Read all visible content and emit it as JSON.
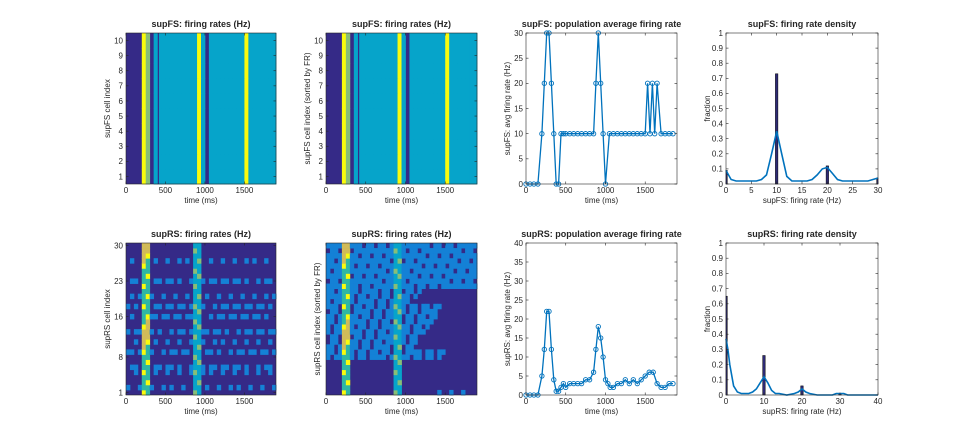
{
  "figure": {
    "background": "#ffffff"
  },
  "colors": {
    "line": "#0072bd",
    "bar_fill": "#2e2a77",
    "axis": "#262626",
    "parula": [
      "#352a87",
      "#0f5cdd",
      "#1481d6",
      "#06a4ca",
      "#2eb7a4",
      "#87bf77",
      "#d1bb59",
      "#fec832",
      "#f9fb0e"
    ]
  },
  "chart_data": [
    {
      "type": "heatmap",
      "title": "supFS: firing rates (Hz)",
      "xlabel": "time (ms)",
      "ylabel": "supFS cell index",
      "xlim": [
        0,
        1900
      ],
      "ylim": [
        0.5,
        10.5
      ],
      "xticks": [
        0,
        500,
        1000,
        1500
      ],
      "yticks": [
        1,
        2,
        3,
        4,
        5,
        6,
        7,
        8,
        9,
        10
      ],
      "bins_ms": 50,
      "rows": 10,
      "profile": [
        0,
        0,
        0,
        0,
        9,
        5,
        0,
        3,
        3,
        3,
        3,
        3,
        3,
        3,
        3,
        3,
        3,
        3,
        8,
        3,
        0,
        3,
        3,
        3,
        3,
        3,
        3,
        3,
        3,
        3,
        8,
        3,
        3,
        3,
        3,
        3,
        3,
        3
      ],
      "dark_lines_ms": [
        410,
        1030
      ]
    },
    {
      "type": "heatmap",
      "title": "supFS: firing rates (Hz)",
      "xlabel": "time (ms)",
      "ylabel": "supFS cell index (sorted by FR)",
      "xlim": [
        0,
        1900
      ],
      "ylim": [
        0.5,
        10.5
      ],
      "xticks": [
        0,
        500,
        1000,
        1500
      ],
      "yticks": [
        1,
        2,
        3,
        4,
        5,
        6,
        7,
        8,
        9,
        10
      ],
      "bins_ms": 50,
      "rows": 10,
      "profile": [
        0,
        0,
        0,
        0,
        9,
        5,
        0,
        3,
        3,
        3,
        3,
        3,
        3,
        3,
        3,
        3,
        3,
        3,
        8,
        3,
        0,
        3,
        3,
        3,
        3,
        3,
        3,
        3,
        3,
        3,
        8,
        3,
        3,
        3,
        3,
        3,
        3,
        3
      ],
      "dark_lines_ms": [
        410,
        1030
      ]
    },
    {
      "type": "line",
      "title": "supFS: population average firing rate",
      "xlabel": "time (ms)",
      "ylabel": "supFS: avg firing rate (Hz)",
      "xlim": [
        0,
        1900
      ],
      "ylim": [
        0,
        30
      ],
      "xticks": [
        0,
        500,
        1000,
        1500
      ],
      "yticks": [
        0,
        5,
        10,
        15,
        20,
        25,
        30
      ],
      "x": [
        0,
        50,
        100,
        150,
        200,
        230,
        260,
        290,
        320,
        350,
        380,
        410,
        440,
        470,
        500,
        550,
        600,
        650,
        700,
        750,
        800,
        850,
        880,
        910,
        940,
        970,
        1000,
        1050,
        1100,
        1150,
        1200,
        1250,
        1300,
        1350,
        1400,
        1450,
        1500,
        1530,
        1560,
        1590,
        1620,
        1650,
        1700,
        1750,
        1800,
        1850
      ],
      "y": [
        0,
        0,
        0,
        0,
        10,
        20,
        30,
        30,
        20,
        10,
        0,
        0,
        10,
        10,
        10,
        10,
        10,
        10,
        10,
        10,
        10,
        10,
        20,
        30,
        20,
        10,
        0,
        10,
        10,
        10,
        10,
        10,
        10,
        10,
        10,
        10,
        10,
        20,
        10,
        20,
        10,
        20,
        10,
        10,
        10,
        10
      ]
    },
    {
      "type": "bar",
      "title": "supFS: firing rate density",
      "xlabel": "supFS: firing rate (Hz)",
      "ylabel": "fraction",
      "xlim": [
        0,
        30
      ],
      "ylim": [
        0,
        1
      ],
      "xticks": [
        0,
        5,
        10,
        15,
        20,
        25,
        30
      ],
      "yticks": [
        0,
        0.1,
        0.2,
        0.3,
        0.4,
        0.5,
        0.6,
        0.7,
        0.8,
        0.9,
        1
      ],
      "x": [
        0,
        10,
        20,
        30
      ],
      "values": [
        0.09,
        0.73,
        0.12,
        0.04
      ],
      "density_curve": {
        "x": [
          0,
          0.5,
          1,
          2,
          3,
          4,
          5,
          6,
          7,
          8,
          9,
          10,
          11,
          12,
          13,
          14,
          15,
          16,
          17,
          18,
          19,
          20,
          21,
          22,
          23,
          24,
          25,
          26,
          27,
          28,
          29,
          30
        ],
        "y": [
          0.09,
          0.06,
          0.03,
          0.02,
          0.02,
          0.02,
          0.02,
          0.02,
          0.03,
          0.06,
          0.2,
          0.35,
          0.2,
          0.05,
          0.02,
          0.02,
          0.02,
          0.02,
          0.03,
          0.06,
          0.1,
          0.11,
          0.07,
          0.03,
          0.02,
          0.02,
          0.02,
          0.02,
          0.02,
          0.02,
          0.03,
          0.04
        ]
      }
    },
    {
      "type": "heatmap",
      "title": "supRS: firing rates (Hz)",
      "xlabel": "time (ms)",
      "ylabel": "supRS cell index",
      "xlim": [
        0,
        1900
      ],
      "ylim": [
        0.5,
        30.5
      ],
      "xticks": [
        0,
        500,
        1000,
        1500
      ],
      "yticks": [
        1,
        8,
        16,
        23,
        30
      ],
      "bins_ms": 50,
      "rows": 30
    },
    {
      "type": "heatmap",
      "title": "supRS: firing rates (Hz)",
      "xlabel": "time (ms)",
      "ylabel": "supRS cell index (sorted by FR)",
      "xlim": [
        0,
        1900
      ],
      "ylim": [
        0.5,
        30.5
      ],
      "xticks": [
        0,
        500,
        1000,
        1500
      ],
      "yticks": [],
      "bins_ms": 50,
      "rows": 30
    },
    {
      "type": "line",
      "title": "supRS: population average firing rate",
      "xlabel": "time (ms)",
      "ylabel": "supRS: avg firing rate (Hz)",
      "xlim": [
        0,
        1900
      ],
      "ylim": [
        0,
        40
      ],
      "xticks": [
        0,
        500,
        1000,
        1500
      ],
      "yticks": [
        0,
        5,
        10,
        15,
        20,
        25,
        30,
        35,
        40
      ],
      "x": [
        0,
        50,
        100,
        150,
        200,
        230,
        260,
        290,
        320,
        350,
        380,
        410,
        440,
        470,
        500,
        550,
        600,
        650,
        700,
        750,
        800,
        850,
        880,
        910,
        940,
        970,
        1000,
        1030,
        1060,
        1100,
        1150,
        1200,
        1250,
        1300,
        1350,
        1400,
        1450,
        1500,
        1550,
        1600,
        1650,
        1700,
        1750,
        1800,
        1850
      ],
      "y": [
        0,
        0,
        0,
        0,
        5,
        12,
        22,
        22,
        12,
        4,
        1,
        1,
        2,
        3,
        2,
        3,
        3,
        3,
        3,
        4,
        4,
        6,
        12,
        18,
        15,
        10,
        4,
        3,
        2,
        2,
        3,
        3,
        4,
        3,
        4,
        3,
        4,
        5,
        6,
        6,
        3,
        2,
        2,
        3,
        3
      ]
    },
    {
      "type": "bar",
      "title": "supRS: firing rate density",
      "xlabel": "supRS: firing rate (Hz)",
      "ylabel": "fraction",
      "xlim": [
        0,
        40
      ],
      "ylim": [
        0,
        1
      ],
      "xticks": [
        0,
        10,
        20,
        30,
        40
      ],
      "yticks": [
        0,
        0.1,
        0.2,
        0.3,
        0.4,
        0.5,
        0.6,
        0.7,
        0.8,
        0.9,
        1
      ],
      "x": [
        0,
        10,
        20,
        30
      ],
      "values": [
        0.65,
        0.26,
        0.06,
        0.01
      ],
      "density_curve": {
        "x": [
          0,
          0.5,
          1,
          2,
          3,
          4,
          5,
          6,
          7,
          8,
          9,
          10,
          11,
          12,
          13,
          14,
          16,
          18,
          19,
          20,
          21,
          22,
          24,
          26,
          28,
          29,
          30,
          31,
          32,
          34,
          36,
          38,
          40
        ],
        "y": [
          0.37,
          0.3,
          0.2,
          0.06,
          0.02,
          0.01,
          0.01,
          0.01,
          0.02,
          0.04,
          0.08,
          0.12,
          0.08,
          0.03,
          0.01,
          0.01,
          0.0,
          0.01,
          0.02,
          0.04,
          0.02,
          0.01,
          0.0,
          0.0,
          0.0,
          0.01,
          0.01,
          0.01,
          0.0,
          0.0,
          0.0,
          0.0,
          0.0
        ]
      }
    }
  ]
}
